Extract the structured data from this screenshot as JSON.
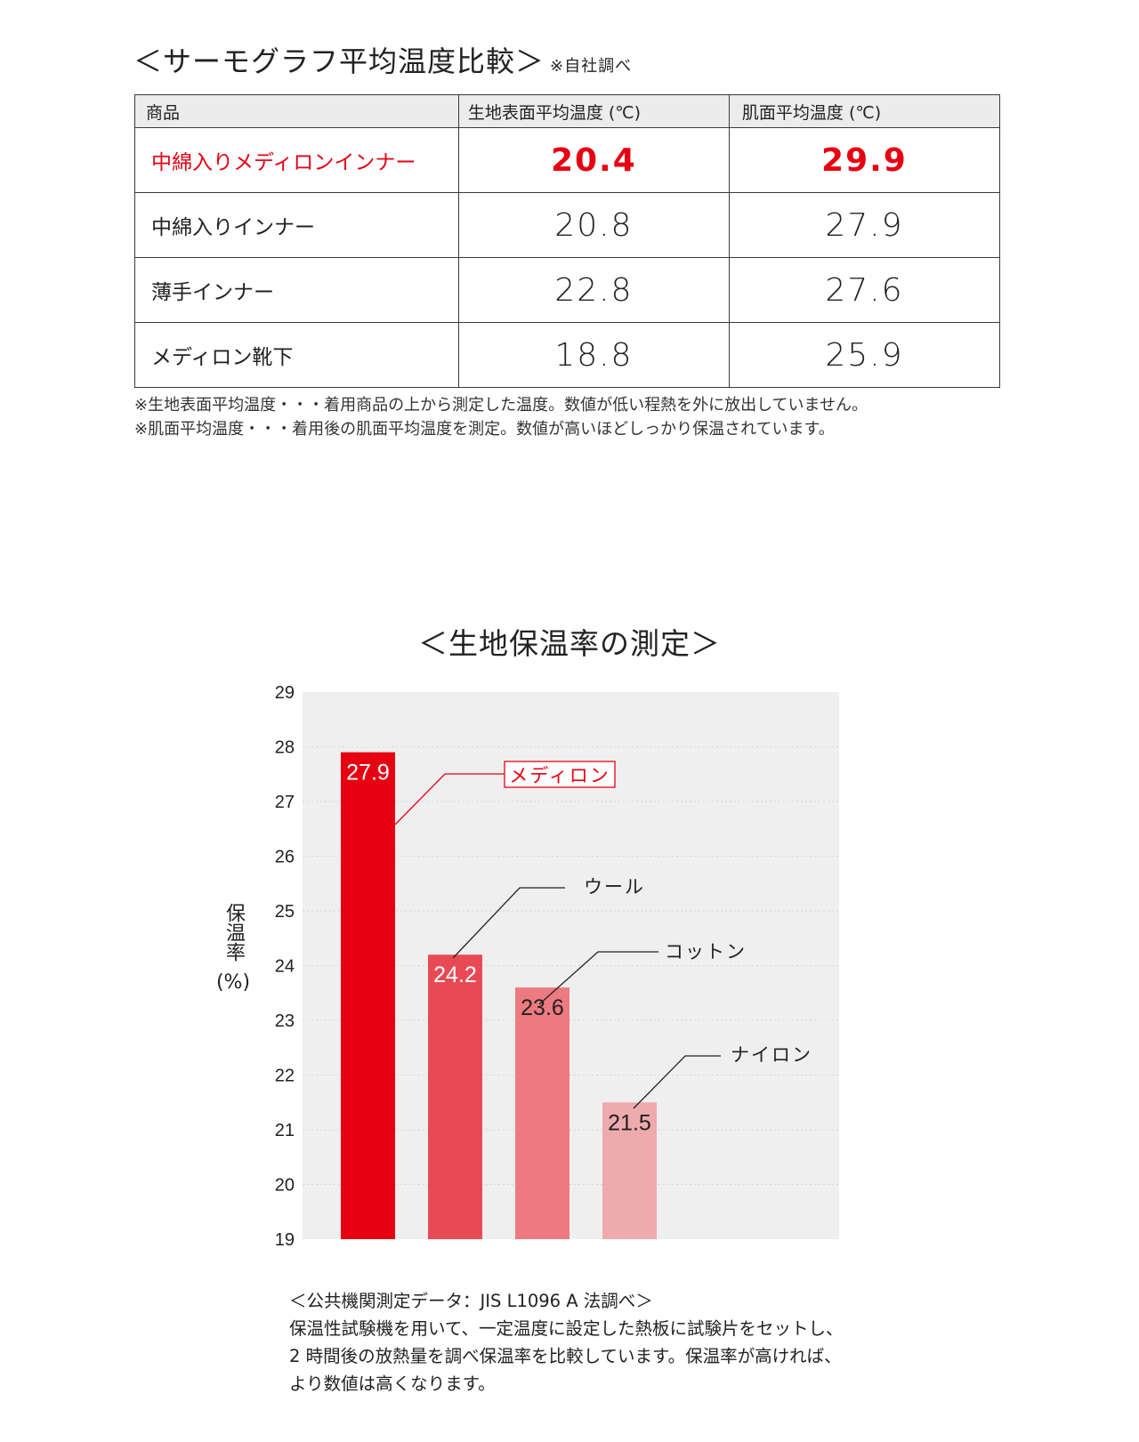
{
  "thermo": {
    "title": "＜サーモグラフ平均温度比較＞",
    "note": "※自社調べ",
    "headers": [
      "商品",
      "生地表面平均温度 (℃)",
      "肌面平均温度 (℃)"
    ],
    "rows": [
      {
        "name": "中綿入りメディロンインナー",
        "surface": "20.4",
        "skin": "29.9"
      },
      {
        "name": "中綿入りインナー",
        "surface": "20.8",
        "skin": "27.9"
      },
      {
        "name": "薄手インナー",
        "surface": "22.8",
        "skin": "27.6"
      },
      {
        "name": "メディロン靴下",
        "surface": "18.8",
        "skin": "25.9"
      }
    ],
    "footnotes": [
      "※生地表面平均温度・・・着用商品の上から測定した温度。数値が低い程熱を外に放出していません。",
      "※肌面平均温度・・・着用後の肌面平均温度を測定。数値が高いほどしっかり保温されています。"
    ],
    "highlight_color": "#e60012"
  },
  "chart_data": {
    "type": "bar",
    "title": "＜生地保温率の測定＞",
    "ylabel": "保温率",
    "yunit": "(%)",
    "categories": [
      "メディロン",
      "ウール",
      "コットン",
      "ナイロン"
    ],
    "values": [
      27.9,
      24.2,
      23.6,
      21.5
    ],
    "value_labels": [
      "27.9",
      "24.2",
      "23.6",
      "21.5"
    ],
    "ylim": [
      19,
      29
    ],
    "yticks": [
      "19",
      "20",
      "21",
      "22",
      "23",
      "24",
      "25",
      "26",
      "27",
      "28",
      "29"
    ],
    "grid": true,
    "colors": [
      "#e60012",
      "#e84a55",
      "#ec7a80",
      "#eeaaad"
    ],
    "plot_bg": "#efefef"
  },
  "chart_notes": {
    "heading": "＜公共機関測定データ：JIS L1096 A 法調べ＞",
    "body": "保温性試験機を用いて、一定温度に設定した熱板に試験片をセットし、2 時間後の放熱量を調べ保温率を比較しています。保温率が高ければ、より数値は高くなります。"
  }
}
